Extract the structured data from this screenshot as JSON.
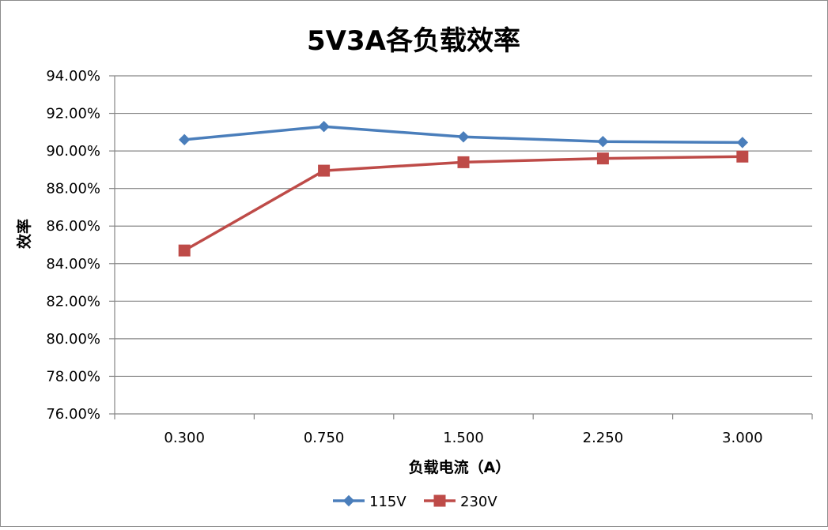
{
  "chart_data": {
    "type": "line",
    "title": "5V3A各负载效率",
    "xlabel": "负载电流（A）",
    "ylabel": "效率",
    "categories": [
      "0.300",
      "0.750",
      "1.500",
      "2.250",
      "3.000"
    ],
    "ylim": [
      0.76,
      0.94
    ],
    "ytick_step": 0.02,
    "y_format": "percent-2dp",
    "grid": "horizontal",
    "legend_position": "bottom",
    "series": [
      {
        "name": "115V",
        "values": [
          0.906,
          0.913,
          0.9075,
          0.905,
          0.9045
        ],
        "color": "#4a7ebb",
        "marker": "diamond"
      },
      {
        "name": "230V",
        "values": [
          0.847,
          0.8895,
          0.894,
          0.896,
          0.897
        ],
        "color": "#be4b48",
        "marker": "square"
      }
    ]
  }
}
